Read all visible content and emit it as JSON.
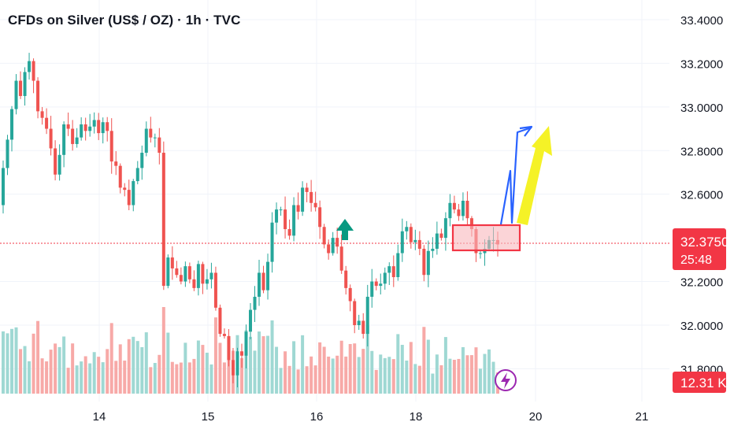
{
  "header": {
    "title": "CFDs on Silver (US$ / OZ) · 1h · TVC"
  },
  "colors": {
    "up": "#26a69a",
    "down": "#ef5350",
    "up_vol": "#9fd8d3",
    "down_vol": "#f7a9a7",
    "price_tag": "#f23645",
    "arrow_blue": "#2962ff",
    "arrow_yellow": "#f5f227"
  },
  "axis": {
    "y_ticks": [
      "33.4000",
      "33.2000",
      "33.0000",
      "32.8000",
      "32.6000",
      "32.2000",
      "32.0000",
      "31.8000"
    ],
    "y_values": [
      33.4,
      33.2,
      33.0,
      32.8,
      32.6,
      32.2,
      32.0,
      31.8
    ],
    "x_ticks": [
      "14",
      "15",
      "16",
      "18",
      "20",
      "21"
    ]
  },
  "price_tag": {
    "price": "32.3750",
    "countdown": "25:48"
  },
  "volume_tag": {
    "value": "12.31 K"
  },
  "icons": {
    "lightning": "lightning-icon"
  },
  "chart_data": {
    "type": "candlestick",
    "title": "CFDs on Silver (US$ / OZ) · 1h · TVC",
    "ylim": [
      31.65,
      33.49
    ],
    "current_price": 32.375,
    "closes": [
      32.72,
      32.85,
      32.99,
      33.12,
      33.05,
      33.16,
      33.21,
      33.12,
      32.98,
      32.95,
      32.9,
      32.81,
      32.69,
      32.78,
      32.92,
      32.9,
      32.83,
      32.86,
      32.92,
      32.89,
      32.91,
      32.94,
      32.88,
      32.93,
      32.89,
      32.75,
      32.73,
      32.63,
      32.62,
      32.55,
      32.66,
      32.72,
      32.79,
      32.9,
      32.86,
      32.86,
      32.79,
      32.18,
      32.31,
      32.26,
      32.23,
      32.2,
      32.27,
      32.21,
      32.17,
      32.28,
      32.19,
      32.21,
      32.24,
      32.08,
      31.96,
      31.95,
      31.84,
      31.77,
      31.88,
      31.86,
      31.97,
      32.07,
      32.13,
      32.24,
      32.16,
      32.29,
      32.47,
      32.53,
      32.53,
      32.44,
      32.41,
      32.55,
      32.52,
      32.63,
      32.61,
      32.56,
      32.54,
      32.45,
      32.37,
      32.33,
      32.4,
      32.36,
      32.25,
      32.17,
      32.11,
      32.0,
      32.02,
      31.96,
      32.13,
      32.2,
      32.18,
      32.19,
      32.24,
      32.27,
      32.22,
      32.33,
      32.43,
      32.45,
      32.38,
      32.39,
      32.35,
      32.23,
      32.34,
      32.35,
      32.42,
      32.4,
      32.49,
      32.56,
      32.53,
      32.5,
      32.57,
      32.49,
      32.44,
      32.33,
      32.33,
      32.35,
      32.39,
      32.39,
      32.37
    ],
    "volume_peak": 12.31,
    "annotations": [
      "green up arrow",
      "red resistance box",
      "blue projected path",
      "yellow target arrow"
    ]
  }
}
